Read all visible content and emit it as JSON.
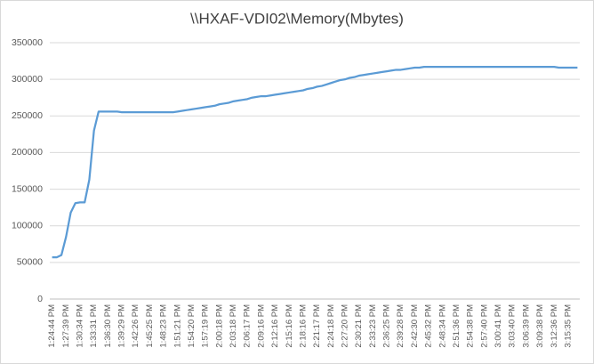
{
  "chart_data": {
    "type": "line",
    "title": "\\\\HXAF-VDI02\\Memory(Mbytes)",
    "categories": [
      "1:24:44 PM",
      null,
      null,
      "1:27:39 PM",
      null,
      null,
      "1:30:34 PM",
      null,
      null,
      "1:33:31 PM",
      null,
      null,
      "1:36:30 PM",
      null,
      null,
      "1:39:29 PM",
      null,
      null,
      "1:42:26 PM",
      null,
      null,
      "1:45:25 PM",
      null,
      null,
      "1:48:23 PM",
      null,
      null,
      "1:51:21 PM",
      null,
      null,
      "1:54:20 PM",
      null,
      null,
      "1:57:19 PM",
      null,
      null,
      "2:00:18 PM",
      null,
      null,
      "2:03:18 PM",
      null,
      null,
      "2:06:17 PM",
      null,
      null,
      "2:09:16 PM",
      null,
      null,
      "2:12:16 PM",
      null,
      null,
      "2:15:16 PM",
      null,
      null,
      "2:18:16 PM",
      null,
      null,
      "2:21:17 PM",
      null,
      null,
      "2:24:18 PM",
      null,
      null,
      "2:27:20 PM",
      null,
      null,
      "2:30:21 PM",
      null,
      null,
      "2:33:23 PM",
      null,
      null,
      "2:36:25 PM",
      null,
      null,
      "2:39:28 PM",
      null,
      null,
      "2:42:30 PM",
      null,
      null,
      "2:45:32 PM",
      null,
      null,
      "2:48:34 PM",
      null,
      null,
      "2:51:36 PM",
      null,
      null,
      "2:54:38 PM",
      null,
      null,
      "2:57:40 PM",
      null,
      null,
      "3:00:41 PM",
      null,
      null,
      "3:03:40 PM",
      null,
      null,
      "3:06:39 PM",
      null,
      null,
      "3:09:38 PM",
      null,
      null,
      "3:12:36 PM",
      null,
      null,
      "3:15:35 PM",
      null,
      null
    ],
    "values": [
      57000,
      57000,
      60000,
      85000,
      118000,
      131000,
      132000,
      132000,
      163000,
      230000,
      256000,
      256000,
      256000,
      256000,
      256000,
      255000,
      255000,
      255000,
      255000,
      255000,
      255000,
      255000,
      255000,
      255000,
      255000,
      255000,
      255000,
      256000,
      257000,
      258000,
      259000,
      260000,
      261000,
      262000,
      263000,
      264000,
      266000,
      267000,
      268000,
      270000,
      271000,
      272000,
      273000,
      275000,
      276000,
      277000,
      277000,
      278000,
      279000,
      280000,
      281000,
      282000,
      283000,
      284000,
      285000,
      287000,
      288000,
      290000,
      291000,
      293000,
      295000,
      297000,
      299000,
      300000,
      302000,
      303000,
      305000,
      306000,
      307000,
      308000,
      309000,
      310000,
      311000,
      312000,
      313000,
      313000,
      314000,
      315000,
      316000,
      316000,
      317000,
      317000,
      317000,
      317000,
      317000,
      317000,
      317000,
      317000,
      317000,
      317000,
      317000,
      317000,
      317000,
      317000,
      317000,
      317000,
      317000,
      317000,
      317000,
      317000,
      317000,
      317000,
      317000,
      317000,
      317000,
      317000,
      317000,
      317000,
      317000,
      316000,
      316000,
      316000,
      316000,
      316000
    ],
    "color": "#5b9bd5",
    "ylim": [
      0,
      350000
    ],
    "yticks": [
      0,
      50000,
      100000,
      150000,
      200000,
      250000,
      300000,
      350000
    ],
    "grid": true
  }
}
